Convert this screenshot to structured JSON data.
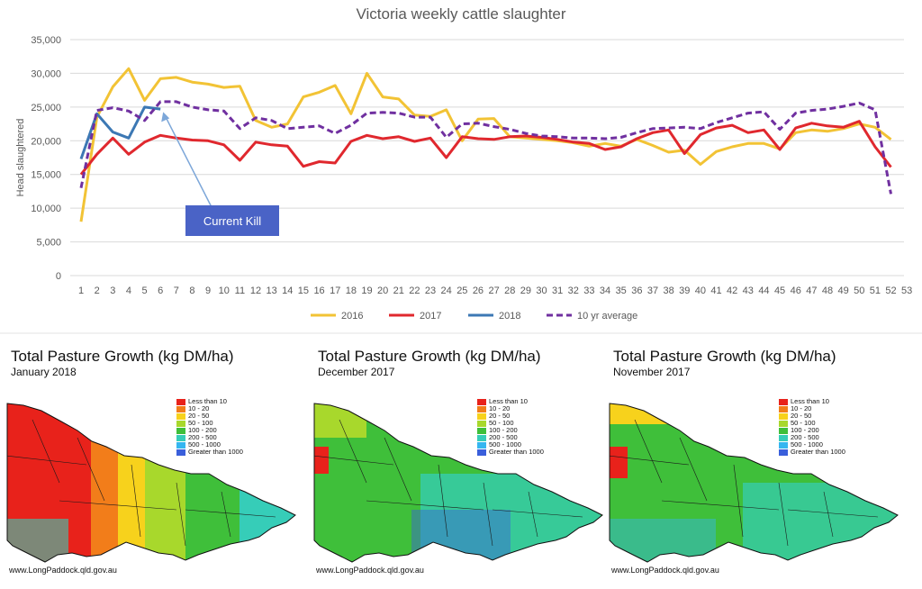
{
  "chart_data": {
    "type": "line",
    "title": "Victoria weekly cattle slaughter",
    "ylabel": "Head slaughtered",
    "xlabel": "",
    "ylim": [
      0,
      35000
    ],
    "yticks": [
      "0",
      "5,000",
      "10,000",
      "15,000",
      "20,000",
      "25,000",
      "30,000",
      "35,000"
    ],
    "ytick_values": [
      0,
      5000,
      10000,
      15000,
      20000,
      25000,
      30000,
      35000
    ],
    "x_categories": [
      "1",
      "2",
      "3",
      "4",
      "5",
      "6",
      "7",
      "8",
      "9",
      "10",
      "11",
      "12",
      "13",
      "14",
      "15",
      "16",
      "17",
      "18",
      "19",
      "20",
      "21",
      "22",
      "23",
      "24",
      "25",
      "26",
      "27",
      "28",
      "29",
      "30",
      "31",
      "32",
      "33",
      "34",
      "35",
      "36",
      "37",
      "38",
      "39",
      "40",
      "41",
      "42",
      "43",
      "44",
      "45",
      "46",
      "47",
      "48",
      "49",
      "50",
      "51",
      "52",
      "53"
    ],
    "grid": "horizontal",
    "legend_position": "bottom",
    "annotation": "Current Kill",
    "series": [
      {
        "name": "2016",
        "color": "#f2c335",
        "dash": false,
        "values": [
          8000,
          23500,
          28000,
          30700,
          26000,
          29200,
          29400,
          28700,
          28400,
          27900,
          28100,
          23000,
          22000,
          22500,
          26500,
          27200,
          28200,
          24000,
          30000,
          26500,
          26200,
          23800,
          23600,
          24600,
          20000,
          23200,
          23300,
          20600,
          20400,
          20200,
          20000,
          19700,
          19200,
          19600,
          19200,
          20200,
          19300,
          18300,
          18600,
          16500,
          18400,
          19100,
          19600,
          19600,
          18800,
          21200,
          21600,
          21400,
          21800,
          22500,
          22000,
          20200
        ]
      },
      {
        "name": "2017",
        "color": "#e0282e",
        "dash": false,
        "values": [
          15000,
          18000,
          20400,
          18000,
          19800,
          20800,
          20400,
          20100,
          20000,
          19400,
          17100,
          19800,
          19400,
          19200,
          16200,
          16900,
          16700,
          19900,
          20800,
          20300,
          20600,
          19900,
          20400,
          17500,
          20600,
          20300,
          20200,
          20600,
          20700,
          20500,
          20200,
          19800,
          19600,
          18700,
          19100,
          20300,
          21200,
          21600,
          18100,
          20900,
          21900,
          22300,
          21200,
          21600,
          18700,
          21900,
          22600,
          22200,
          22000,
          22900,
          19100,
          16100
        ]
      },
      {
        "name": "2018",
        "color": "#3c78b4",
        "dash": false,
        "values": [
          17300,
          24000,
          21300,
          20400,
          25000,
          24700
        ]
      },
      {
        "name": "10 yr average",
        "color": "#7030a0",
        "dash": true,
        "values": [
          13000,
          24500,
          24900,
          24400,
          23000,
          25800,
          25800,
          25000,
          24600,
          24400,
          21800,
          23400,
          23000,
          21800,
          22000,
          22200,
          21100,
          22300,
          24100,
          24200,
          24100,
          23500,
          23500,
          20500,
          22500,
          22600,
          22100,
          21700,
          21100,
          20700,
          20600,
          20400,
          20400,
          20300,
          20500,
          21200,
          21800,
          21900,
          22000,
          21800,
          22700,
          23400,
          24100,
          24300,
          21700,
          24100,
          24500,
          24700,
          25100,
          25600,
          24600,
          12100
        ]
      }
    ]
  },
  "maps": [
    {
      "title": "Total Pasture Growth (kg DM/ha)",
      "subtitle": "January 2018",
      "source": "www.LongPaddock.qld.gov.au",
      "variant": "dry"
    },
    {
      "title": "Total Pasture Growth (kg DM/ha)",
      "subtitle": "December 2017",
      "source": "www.LongPaddock.qld.gov.au",
      "variant": "wet"
    },
    {
      "title": "Total Pasture Growth (kg DM/ha)",
      "subtitle": "November 2017",
      "source": "www.LongPaddock.qld.gov.au",
      "variant": "mid"
    }
  ],
  "map_legend": [
    {
      "label": "Less than 10",
      "color": "#e8221b"
    },
    {
      "label": "10 - 20",
      "color": "#f27d1a"
    },
    {
      "label": "20 - 50",
      "color": "#f7d21c"
    },
    {
      "label": "50 - 100",
      "color": "#a8d82c"
    },
    {
      "label": "100 - 200",
      "color": "#3fbf3a"
    },
    {
      "label": "200 - 500",
      "color": "#36cdb8"
    },
    {
      "label": "500 - 1000",
      "color": "#35b6f0"
    },
    {
      "label": "Greater than 1000",
      "color": "#3a5fdb"
    }
  ]
}
